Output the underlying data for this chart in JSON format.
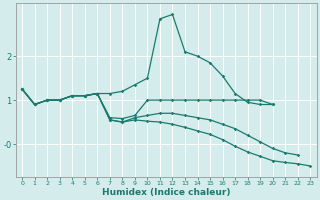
{
  "xlabel": "Humidex (Indice chaleur)",
  "background_color": "#d4edec",
  "grid_color": "#b8d8d8",
  "line_color": "#1a7a6e",
  "x": [
    0,
    1,
    2,
    3,
    4,
    5,
    6,
    7,
    8,
    9,
    10,
    11,
    12,
    13,
    14,
    15,
    16,
    17,
    18,
    19,
    20,
    21,
    22,
    23
  ],
  "lines": [
    [
      1.25,
      0.9,
      1.0,
      1.0,
      1.1,
      1.1,
      1.15,
      1.15,
      1.2,
      1.35,
      1.5,
      2.85,
      2.95,
      2.1,
      2.0,
      1.85,
      1.55,
      1.15,
      0.95,
      0.9,
      0.9,
      null,
      null,
      null
    ],
    [
      1.25,
      0.9,
      1.0,
      1.0,
      1.1,
      1.1,
      1.15,
      0.6,
      0.58,
      0.65,
      1.0,
      1.0,
      1.0,
      1.0,
      1.0,
      1.0,
      1.0,
      1.0,
      1.0,
      1.0,
      0.9,
      null,
      null,
      null
    ],
    [
      1.25,
      0.9,
      1.0,
      1.0,
      1.1,
      1.1,
      1.15,
      0.55,
      0.5,
      0.6,
      0.65,
      0.7,
      0.7,
      0.65,
      0.6,
      0.55,
      0.45,
      0.35,
      0.2,
      0.05,
      -0.1,
      -0.2,
      -0.25,
      null
    ],
    [
      1.25,
      0.9,
      1.0,
      1.0,
      1.1,
      1.1,
      1.15,
      0.55,
      0.5,
      0.55,
      0.52,
      0.5,
      0.45,
      0.38,
      0.3,
      0.22,
      0.1,
      -0.05,
      -0.18,
      -0.28,
      -0.38,
      -0.42,
      -0.45,
      -0.5
    ]
  ],
  "ylim": [
    -0.75,
    3.2
  ],
  "xlim": [
    -0.5,
    23.5
  ],
  "yticks": [
    0,
    1,
    2
  ],
  "ytick_labels": [
    "-0",
    "1",
    "2"
  ],
  "xticks": [
    0,
    1,
    2,
    3,
    4,
    5,
    6,
    7,
    8,
    9,
    10,
    11,
    12,
    13,
    14,
    15,
    16,
    17,
    18,
    19,
    20,
    21,
    22,
    23
  ],
  "marker_size": 1.8,
  "line_width": 0.9,
  "xlabel_fontsize": 6.5,
  "xlabel_fontweight": "bold",
  "xtick_fontsize": 4.5,
  "ytick_fontsize": 6.0
}
